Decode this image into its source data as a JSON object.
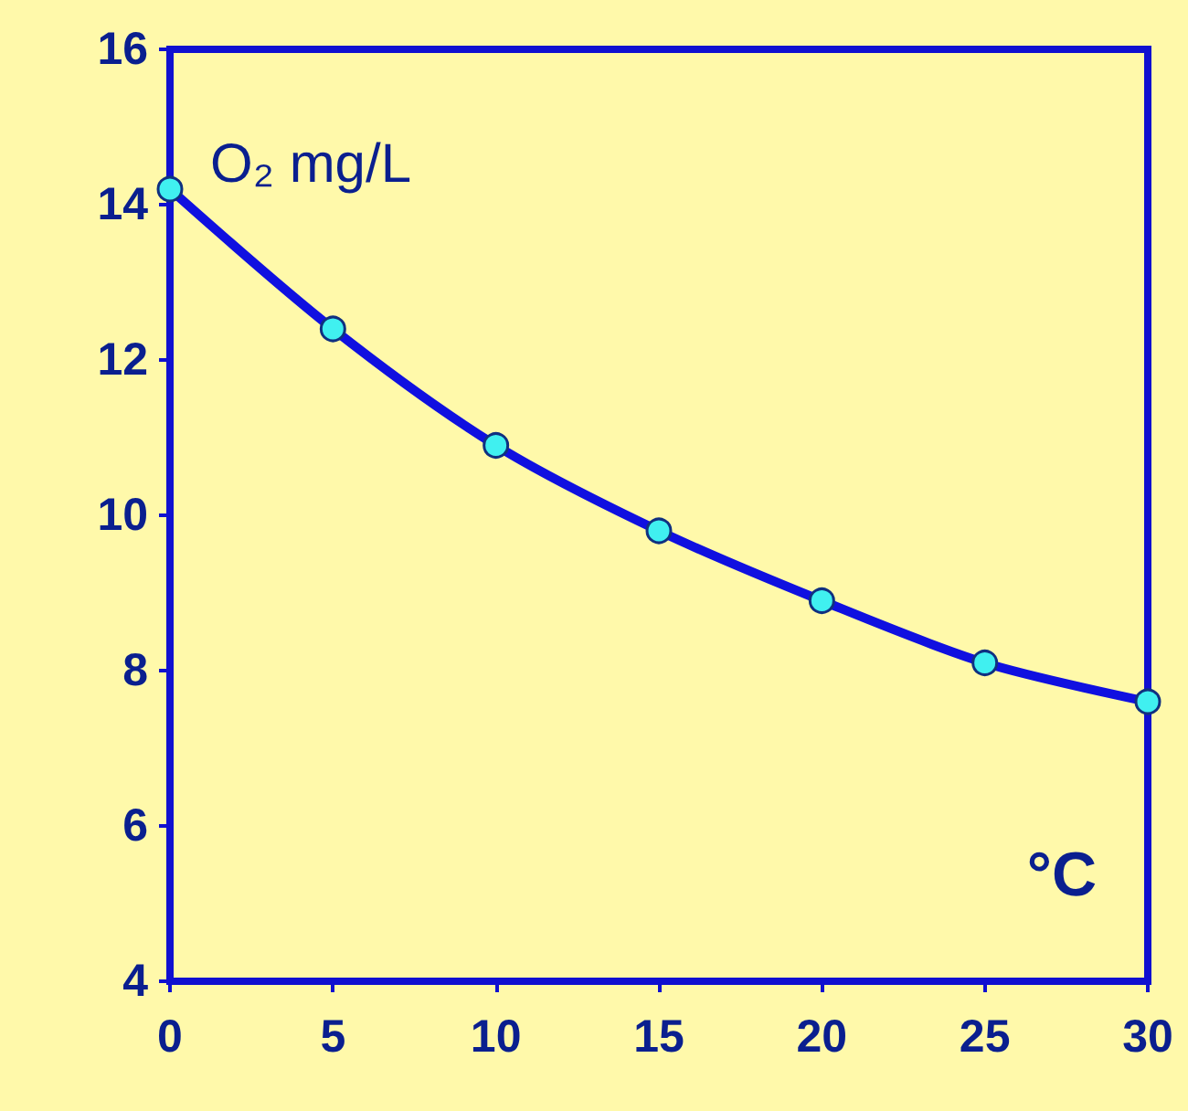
{
  "chart_data": {
    "type": "line",
    "xlabel": "°C",
    "ylabel": "O₂ mg/L",
    "x": [
      0,
      5,
      10,
      15,
      20,
      25,
      30
    ],
    "series": [
      {
        "color": "#1010e0",
        "values": [
          14.2,
          12.4,
          10.9,
          9.8,
          8.9,
          8.1,
          7.6
        ]
      }
    ],
    "xlim": [
      0,
      30
    ],
    "xticks": [
      0,
      5,
      10,
      15,
      20,
      25,
      30
    ],
    "ylim": [
      4,
      16
    ],
    "yticks": [
      4,
      6,
      8,
      10,
      12,
      14,
      16
    ],
    "grid": false,
    "marker": "circle",
    "line_style": "solid"
  }
}
